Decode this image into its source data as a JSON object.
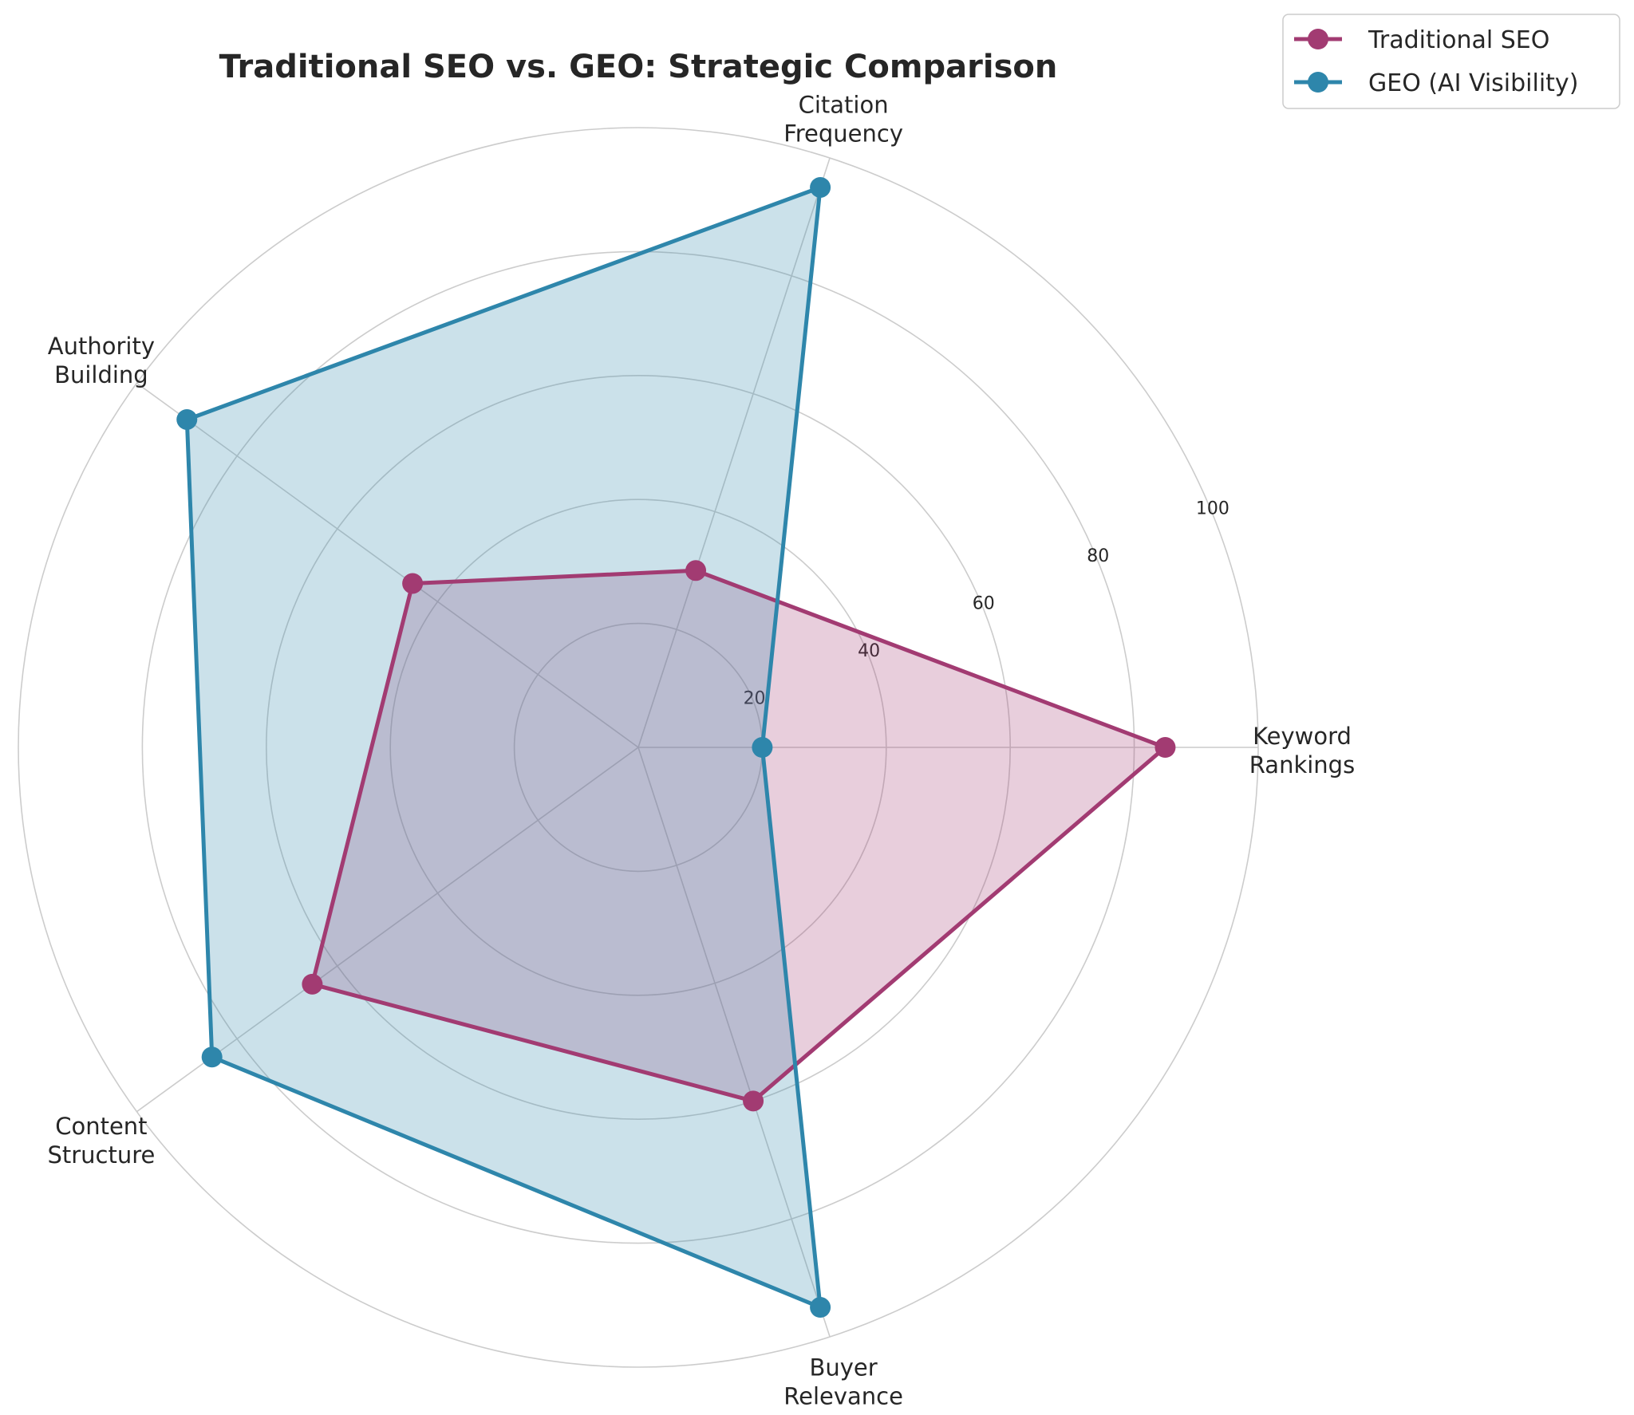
{
  "chart_data": {
    "type": "radar",
    "title": "Traditional SEO vs. GEO: Strategic Comparison",
    "categories": [
      [
        "Keyword",
        "Rankings"
      ],
      [
        "Citation",
        "Frequency"
      ],
      [
        "Authority",
        "Building"
      ],
      [
        "Content",
        "Structure"
      ],
      [
        "Buyer",
        "Relevance"
      ]
    ],
    "series": [
      {
        "name": "Traditional SEO",
        "values": [
          85,
          30,
          45,
          65,
          60
        ],
        "color": "#A23B72"
      },
      {
        "name": "GEO (AI Visibility)",
        "values": [
          20,
          95,
          90,
          85,
          95
        ],
        "color": "#2E86AB"
      }
    ],
    "rlim": [
      0,
      100
    ],
    "rticks": [
      20,
      40,
      60,
      80,
      100
    ],
    "grid": true,
    "legend": "top-right"
  }
}
